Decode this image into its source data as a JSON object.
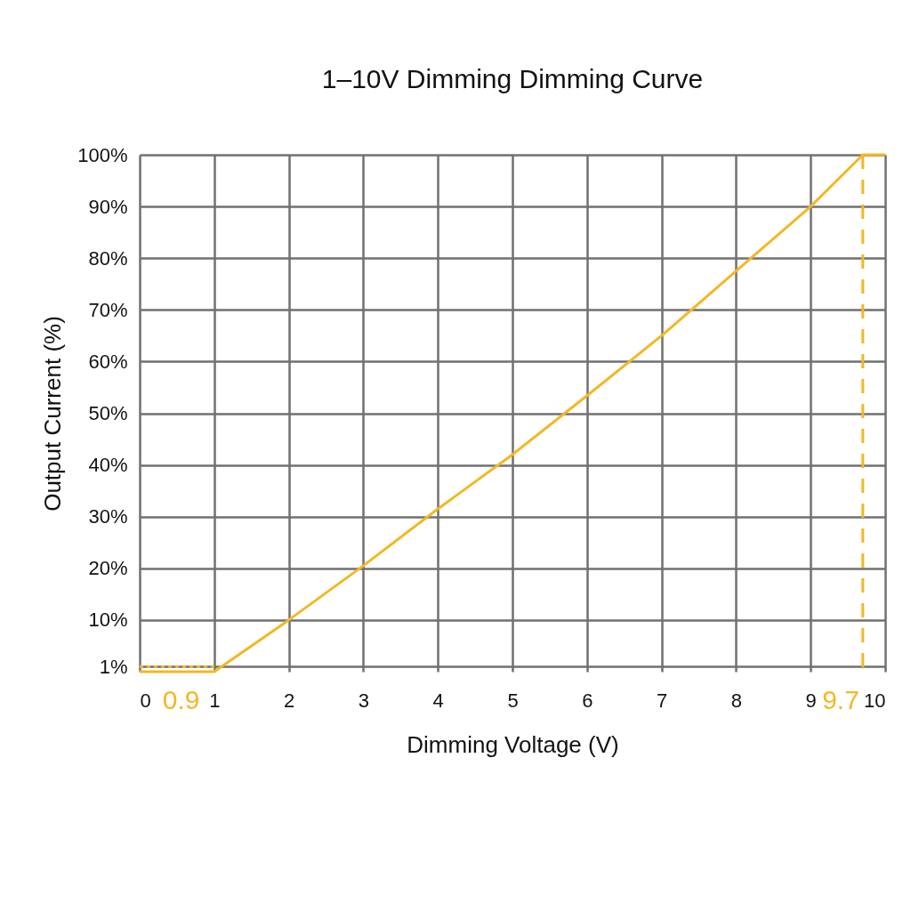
{
  "chart_data": {
    "type": "line",
    "title": "1–10V Dimming Dimming Curve",
    "xlabel": "Dimming Voltage (V)",
    "ylabel": "Output Current (%)",
    "xlim": [
      0,
      10
    ],
    "ylim": [
      0,
      100
    ],
    "xticks": [
      0,
      1,
      2,
      3,
      4,
      5,
      6,
      7,
      8,
      9,
      10
    ],
    "yticks": [
      {
        "value": 1,
        "label": "1%"
      },
      {
        "value": 10,
        "label": "10%"
      },
      {
        "value": 20,
        "label": "20%"
      },
      {
        "value": 30,
        "label": "30%"
      },
      {
        "value": 40,
        "label": "40%"
      },
      {
        "value": 50,
        "label": "50%"
      },
      {
        "value": 60,
        "label": "60%"
      },
      {
        "value": 70,
        "label": "70%"
      },
      {
        "value": 80,
        "label": "80%"
      },
      {
        "value": 90,
        "label": "90%"
      },
      {
        "value": 100,
        "label": "100%"
      }
    ],
    "grid": true,
    "marker": "none",
    "series": [
      {
        "color": "#f2b824",
        "line_style": "solid",
        "x": [
          0,
          1,
          2,
          3,
          4,
          5,
          6,
          7,
          8,
          9,
          9.7,
          10
        ],
        "values": [
          0,
          0,
          10,
          20.5,
          31.5,
          42,
          53.4,
          65,
          77.5,
          90,
          100,
          100
        ]
      },
      {
        "color": "#f2b824",
        "line_style": "dotted",
        "x": [
          0,
          1
        ],
        "values": [
          1,
          1
        ]
      }
    ],
    "ref_lines": [
      {
        "axis": "x",
        "value": 9.7,
        "label": "9.7",
        "color": "#f2b824",
        "line_style": "dashed"
      }
    ],
    "annotations": [
      {
        "text": "0.9",
        "x": 0.9,
        "y": 0
      }
    ]
  }
}
